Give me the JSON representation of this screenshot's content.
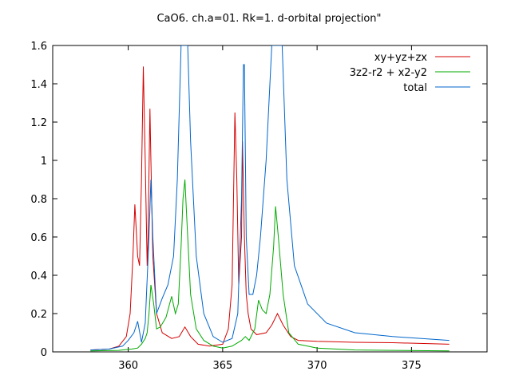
{
  "chart_data": {
    "type": "line",
    "title": "CaO6. ch.a=01. Rk=1. d-orbital projection\"",
    "xlabel": "",
    "ylabel": "",
    "xlim": [
      356,
      379
    ],
    "ylim": [
      0,
      1.6
    ],
    "x_ticks": [
      "360",
      "365",
      "370",
      "375"
    ],
    "y_ticks": [
      "0",
      "0.2",
      "0.4",
      "0.6",
      "0.8",
      "1",
      "1.2",
      "1.4",
      "1.6"
    ],
    "x_tick_values": [
      360,
      365,
      370,
      375
    ],
    "y_tick_values": [
      0,
      0.2,
      0.4,
      0.6,
      0.8,
      1.0,
      1.2,
      1.4,
      1.6
    ],
    "grid": false,
    "legend_position": "top-right",
    "series": [
      {
        "name": "xy+yz+zx",
        "color": "#d40000",
        "x": [
          358.0,
          359.0,
          359.5,
          359.9,
          360.1,
          360.25,
          360.35,
          360.5,
          360.6,
          360.7,
          360.8,
          360.9,
          361.0,
          361.05,
          361.15,
          361.2,
          361.3,
          361.5,
          361.8,
          362.3,
          362.7,
          363.0,
          363.3,
          363.7,
          364.3,
          365.0,
          365.3,
          365.5,
          365.65,
          365.75,
          365.85,
          366.0,
          366.05,
          366.15,
          366.25,
          366.35,
          366.5,
          366.8,
          367.3,
          367.6,
          367.9,
          368.2,
          368.6,
          369.0,
          370.0,
          372.0,
          374.0,
          377.0
        ],
        "values": [
          0.01,
          0.015,
          0.03,
          0.08,
          0.2,
          0.5,
          0.77,
          0.5,
          0.45,
          0.9,
          1.49,
          1.0,
          0.45,
          0.6,
          1.27,
          1.0,
          0.5,
          0.2,
          0.1,
          0.07,
          0.08,
          0.13,
          0.08,
          0.04,
          0.03,
          0.04,
          0.12,
          0.35,
          1.25,
          0.9,
          0.35,
          0.6,
          1.1,
          0.6,
          0.3,
          0.2,
          0.12,
          0.09,
          0.1,
          0.14,
          0.2,
          0.14,
          0.08,
          0.06,
          0.055,
          0.05,
          0.048,
          0.04
        ]
      },
      {
        "name": "3z2-r2 + x2-y2",
        "color": "#00aa00",
        "x": [
          358.0,
          359.5,
          360.2,
          360.5,
          360.7,
          360.9,
          361.0,
          361.1,
          361.2,
          361.35,
          361.5,
          361.7,
          362.0,
          362.3,
          362.5,
          362.65,
          362.8,
          362.9,
          363.0,
          363.1,
          363.3,
          363.6,
          364.0,
          364.5,
          365.0,
          365.5,
          366.0,
          366.2,
          366.4,
          366.7,
          366.9,
          367.1,
          367.3,
          367.5,
          367.7,
          367.8,
          367.95,
          368.2,
          368.5,
          369.0,
          370.0,
          372.0,
          374.0,
          377.0
        ],
        "values": [
          0.005,
          0.008,
          0.015,
          0.02,
          0.04,
          0.07,
          0.1,
          0.2,
          0.35,
          0.25,
          0.12,
          0.13,
          0.18,
          0.29,
          0.2,
          0.25,
          0.55,
          0.8,
          0.9,
          0.7,
          0.3,
          0.12,
          0.06,
          0.03,
          0.02,
          0.03,
          0.06,
          0.08,
          0.06,
          0.12,
          0.27,
          0.22,
          0.2,
          0.3,
          0.55,
          0.76,
          0.6,
          0.3,
          0.1,
          0.04,
          0.02,
          0.01,
          0.008,
          0.005
        ]
      },
      {
        "name": "total",
        "color": "#0066cc",
        "x": [
          358.0,
          359.0,
          359.7,
          360.0,
          360.3,
          360.5,
          360.7,
          360.9,
          361.1,
          361.2,
          361.3,
          361.5,
          361.8,
          362.1,
          362.4,
          362.6,
          362.8,
          362.9,
          362.95,
          363.05,
          363.15,
          363.3,
          363.6,
          364.0,
          364.5,
          365.0,
          365.5,
          365.8,
          366.0,
          366.1,
          366.15,
          366.25,
          366.4,
          366.6,
          366.8,
          367.0,
          367.3,
          367.6,
          367.85,
          368.0,
          368.15,
          368.4,
          368.8,
          369.5,
          370.5,
          372.0,
          374.0,
          377.0
        ],
        "values": [
          0.01,
          0.015,
          0.03,
          0.06,
          0.1,
          0.16,
          0.05,
          0.15,
          0.6,
          0.9,
          0.6,
          0.2,
          0.28,
          0.35,
          0.5,
          0.9,
          1.6,
          1.6,
          1.6,
          1.6,
          1.6,
          1.1,
          0.5,
          0.2,
          0.08,
          0.05,
          0.07,
          0.2,
          0.8,
          1.5,
          1.5,
          0.6,
          0.3,
          0.3,
          0.4,
          0.6,
          1.0,
          1.6,
          1.6,
          1.6,
          1.6,
          0.9,
          0.45,
          0.25,
          0.15,
          0.1,
          0.08,
          0.06
        ]
      }
    ]
  }
}
